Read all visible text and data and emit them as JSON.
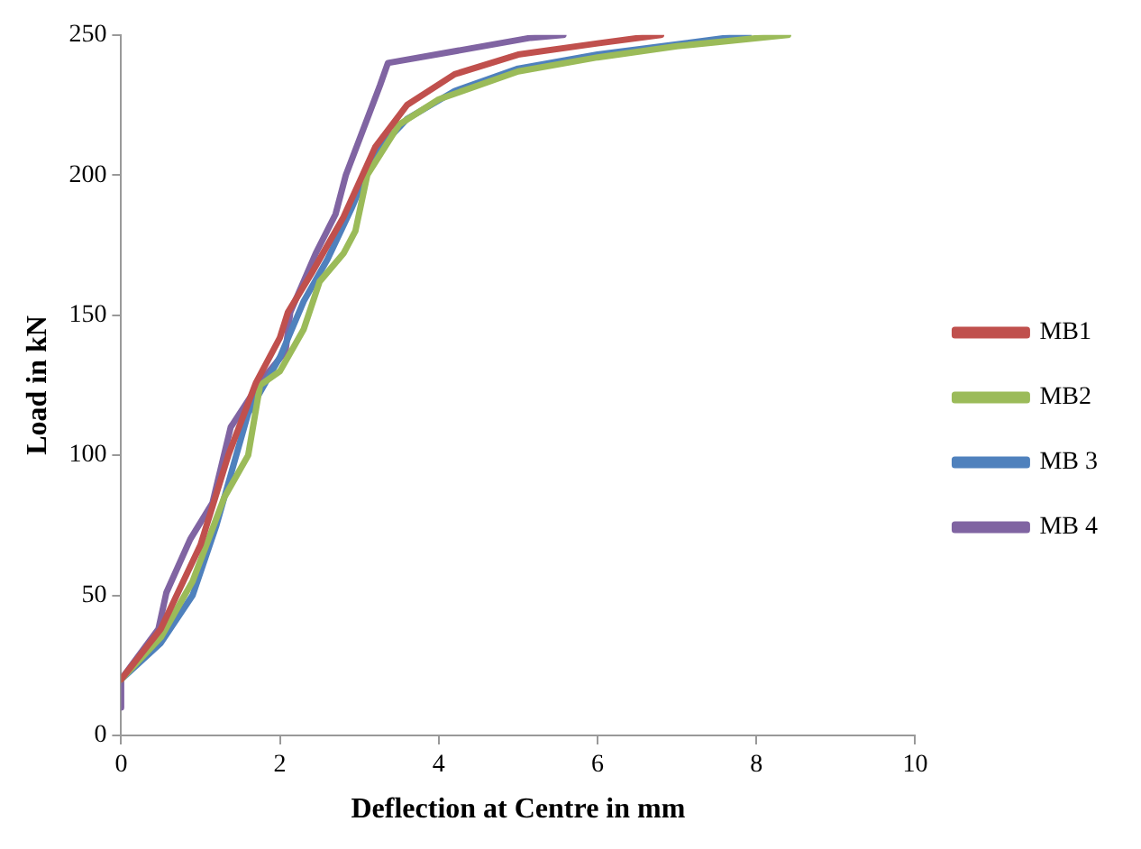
{
  "chart_data": {
    "type": "line",
    "xlabel": "Deflection at Centre in mm",
    "ylabel": "Load in kN",
    "xlim": [
      0,
      10
    ],
    "xticks": [
      0,
      2,
      4,
      6,
      8,
      10
    ],
    "ylim": [
      0,
      250
    ],
    "yticks": [
      0,
      50,
      100,
      150,
      200,
      250
    ],
    "grid": false,
    "legend": "right",
    "marker": "none",
    "line_style": "solid",
    "series": [
      {
        "name": "MB1",
        "color": "#c0504d",
        "x": [
          0,
          0.5,
          1.0,
          1.35,
          1.7,
          2.0,
          2.1,
          2.4,
          2.8,
          3.2,
          3.6,
          4.2,
          5,
          6,
          6.8
        ],
        "values": [
          20,
          38,
          68,
          100,
          126,
          142,
          151,
          165,
          185,
          210,
          225,
          236,
          243,
          247,
          250
        ]
      },
      {
        "name": "MB2",
        "color": "#9bbb59",
        "x": [
          0,
          0.5,
          0.9,
          1.3,
          1.6,
          1.75,
          2.0,
          2.3,
          2.5,
          2.8,
          2.95,
          3.1,
          3.5,
          4,
          5,
          6,
          7,
          8.4
        ],
        "values": [
          20,
          35,
          55,
          85,
          100,
          125,
          130,
          145,
          162,
          172,
          180,
          200,
          218,
          227,
          237,
          242,
          246,
          250
        ]
      },
      {
        "name": "MB 3",
        "color": "#4f81bd",
        "x": [
          0,
          0.5,
          0.9,
          1.2,
          1.6,
          2.0,
          2.3,
          2.6,
          2.9,
          3.2,
          3.6,
          4.2,
          5,
          6,
          7.9
        ],
        "values": [
          20,
          33,
          50,
          75,
          115,
          135,
          155,
          170,
          188,
          208,
          220,
          230,
          238,
          243,
          250
        ]
      },
      {
        "name": "MB 4",
        "color": "#8064a2",
        "x": [
          0,
          0,
          0.47,
          0.57,
          0.87,
          1.15,
          1.38,
          1.75,
          2.07,
          2.13,
          2.45,
          2.7,
          2.83,
          3.26,
          3.36,
          5.16,
          5.57
        ],
        "values": [
          10,
          20,
          38,
          51,
          70,
          83,
          110,
          126,
          137,
          151,
          172,
          186,
          200,
          232,
          240,
          249,
          250
        ]
      }
    ]
  }
}
